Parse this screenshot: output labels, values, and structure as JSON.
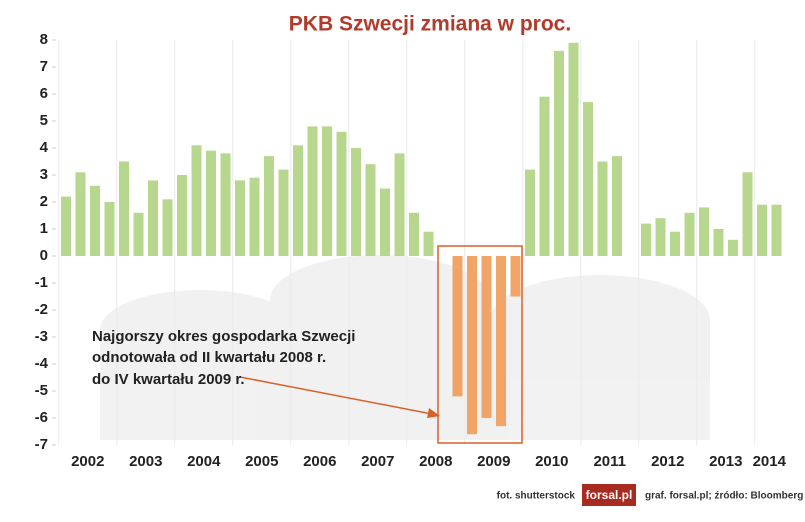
{
  "chart_data": {
    "type": "bar",
    "title": "PKB Szwecji zmiana w proc.",
    "years": [
      "2002",
      "2003",
      "2004",
      "2005",
      "2006",
      "2007",
      "2008",
      "2009",
      "2010",
      "2011",
      "2012",
      "2013",
      "2014"
    ],
    "values": [
      2.2,
      3.1,
      2.6,
      2.0,
      3.5,
      1.6,
      2.8,
      2.1,
      3.0,
      4.1,
      3.9,
      3.8,
      2.8,
      2.9,
      3.7,
      3.2,
      4.1,
      4.8,
      4.8,
      4.6,
      4.0,
      3.4,
      2.5,
      3.8,
      1.6,
      0.9,
      null,
      -5.2,
      -6.6,
      -6.0,
      -6.3,
      -1.5,
      3.2,
      5.9,
      7.6,
      7.9,
      5.7,
      3.5,
      3.7,
      null,
      1.2,
      1.4,
      0.9,
      1.6,
      1.8,
      1.0,
      0.6,
      3.1,
      1.9,
      1.9
    ],
    "color": "#b8d78e",
    "highlight_color": "#f0a466",
    "highlighted": [
      false,
      false,
      false,
      false,
      false,
      false,
      false,
      false,
      false,
      false,
      false,
      false,
      false,
      false,
      false,
      false,
      false,
      false,
      false,
      false,
      false,
      false,
      false,
      false,
      false,
      false,
      false,
      true,
      true,
      true,
      true,
      true,
      false,
      false,
      false,
      false,
      false,
      false,
      false,
      false,
      false,
      false,
      false,
      false,
      false,
      false,
      false,
      false,
      false,
      false
    ],
    "ylim": [
      -7,
      8
    ],
    "yticks": [
      8,
      7,
      6,
      5,
      4,
      3,
      2,
      1,
      0,
      -1,
      -2,
      -3,
      -4,
      -5,
      -6,
      -7
    ],
    "annotation": [
      "Najgorszy okres gospodarka Szwecji",
      "odnotowała od II kwartału 2008 r.",
      "do IV kwartału 2009 r."
    ],
    "photo_credit": "fot. shutterstock",
    "logo": "forsal.pl",
    "source": "graf. forsal.pl;  źródło: Bloomberg"
  }
}
